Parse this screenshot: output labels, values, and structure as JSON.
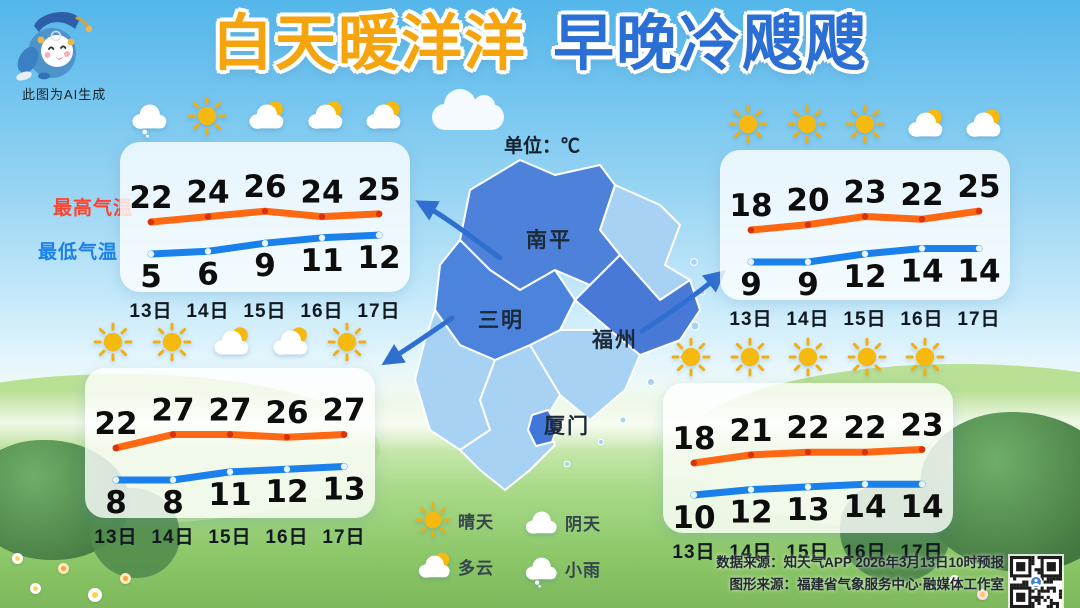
{
  "header": {
    "ai_note": "此图为AI生成"
  },
  "title": {
    "part1": "白天暖洋洋",
    "part2": "早晚冷飕飕",
    "part1_color": "#f6a40e",
    "part2_color": "#2b6fd4"
  },
  "unit_label": "单位：℃",
  "map": {
    "regions": [
      {
        "name": "南平"
      },
      {
        "name": "三明"
      },
      {
        "name": "福州"
      },
      {
        "name": "厦门"
      }
    ],
    "arrows": [
      {
        "from_region": "南平",
        "to_panel": "top-left"
      },
      {
        "from_region": "三明",
        "to_panel": "bottom-left"
      },
      {
        "from_region": "福州",
        "to_panel": "top-right"
      }
    ],
    "highlight_color": "#4e82da",
    "base_color": "#a7d2f4"
  },
  "legend": {
    "high_label": "最高气温",
    "low_label": "最低气温",
    "high_color": "#ff6812",
    "low_color": "#1a80ec"
  },
  "dates": [
    "13日",
    "14日",
    "15日",
    "16日",
    "17日"
  ],
  "panels": [
    {
      "position": "top-left",
      "icons": [
        "rain",
        "sun",
        "cloudy",
        "cloudy",
        "cloudy"
      ],
      "high": [
        22,
        24,
        26,
        24,
        25
      ],
      "low": [
        5,
        6,
        9,
        11,
        12
      ]
    },
    {
      "position": "top-right",
      "icons": [
        "sun",
        "sun",
        "sun",
        "cloudy",
        "cloudy"
      ],
      "high": [
        18,
        20,
        23,
        22,
        25
      ],
      "low": [
        9,
        9,
        12,
        14,
        14
      ]
    },
    {
      "position": "bottom-left",
      "icons": [
        "sun",
        "sun",
        "cloudy",
        "cloudy",
        "sun"
      ],
      "high": [
        22,
        27,
        27,
        26,
        27
      ],
      "low": [
        8,
        8,
        11,
        12,
        13
      ]
    },
    {
      "position": "bottom-right",
      "icons": [
        "sun",
        "sun",
        "sun",
        "sun",
        "sun"
      ],
      "high": [
        18,
        21,
        22,
        22,
        23
      ],
      "low": [
        10,
        12,
        13,
        14,
        14
      ]
    }
  ],
  "weather_legend": [
    {
      "icon": "sun",
      "label": "晴天"
    },
    {
      "icon": "overcast",
      "label": "阴天"
    },
    {
      "icon": "cloudy",
      "label": "多云"
    },
    {
      "icon": "rain",
      "label": "小雨"
    }
  ],
  "source": {
    "line1": "数据来源：知天气APP 2026年3月13日10时预报",
    "line2": "图形来源：福建省气象服务中心·融媒体工作室"
  },
  "chart_data": [
    {
      "type": "line",
      "panel": "top-left",
      "unit": "℃",
      "x": [
        "13日",
        "14日",
        "15日",
        "16日",
        "17日"
      ],
      "series": [
        {
          "name": "最高气温",
          "values": [
            22,
            24,
            26,
            24,
            25
          ]
        },
        {
          "name": "最低气温",
          "values": [
            5,
            6,
            9,
            11,
            12
          ]
        }
      ],
      "icons": [
        "小雨",
        "晴天",
        "多云",
        "多云",
        "多云"
      ]
    },
    {
      "type": "line",
      "panel": "top-right",
      "unit": "℃",
      "x": [
        "13日",
        "14日",
        "15日",
        "16日",
        "17日"
      ],
      "series": [
        {
          "name": "最高气温",
          "values": [
            18,
            20,
            23,
            22,
            25
          ]
        },
        {
          "name": "最低气温",
          "values": [
            9,
            9,
            12,
            14,
            14
          ]
        }
      ],
      "icons": [
        "晴天",
        "晴天",
        "晴天",
        "多云",
        "多云"
      ]
    },
    {
      "type": "line",
      "panel": "bottom-left",
      "unit": "℃",
      "x": [
        "13日",
        "14日",
        "15日",
        "16日",
        "17日"
      ],
      "series": [
        {
          "name": "最高气温",
          "values": [
            22,
            27,
            27,
            26,
            27
          ]
        },
        {
          "name": "最低气温",
          "values": [
            8,
            8,
            11,
            12,
            13
          ]
        }
      ],
      "icons": [
        "晴天",
        "晴天",
        "多云",
        "多云",
        "晴天"
      ]
    },
    {
      "type": "line",
      "panel": "bottom-right",
      "unit": "℃",
      "x": [
        "13日",
        "14日",
        "15日",
        "16日",
        "17日"
      ],
      "series": [
        {
          "name": "最高气温",
          "values": [
            18,
            21,
            22,
            22,
            23
          ]
        },
        {
          "name": "最低气温",
          "values": [
            10,
            12,
            13,
            14,
            14
          ]
        }
      ],
      "icons": [
        "晴天",
        "晴天",
        "晴天",
        "晴天",
        "晴天"
      ]
    }
  ]
}
